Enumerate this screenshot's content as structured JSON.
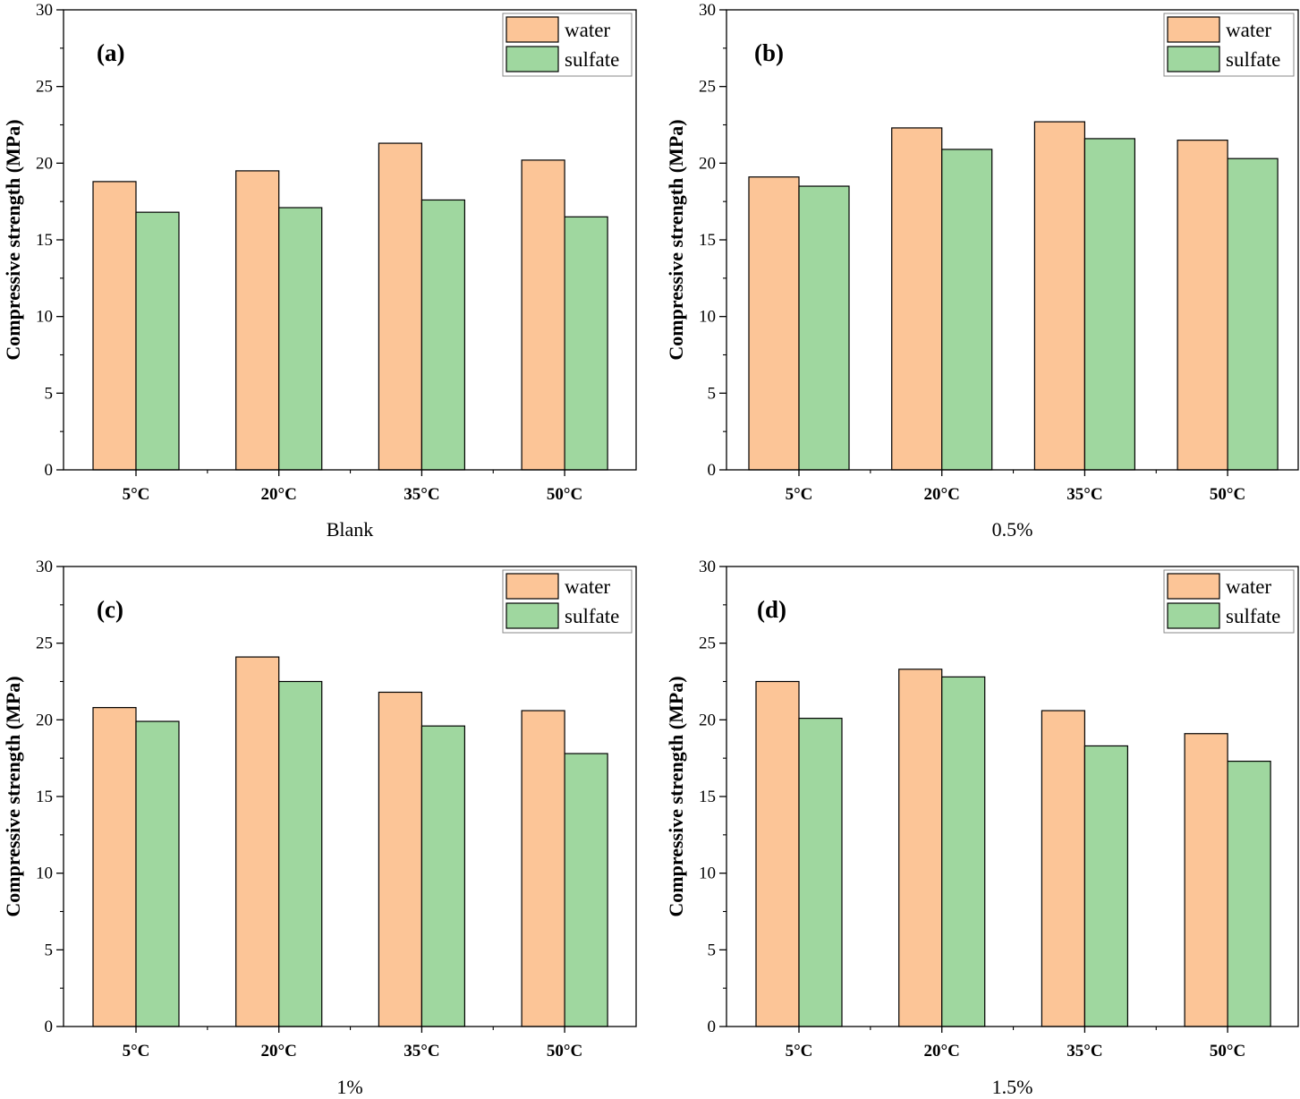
{
  "colors": {
    "water": "#fcc597",
    "sulfate": "#9fd79f",
    "axis": "#000000"
  },
  "chart_data": [
    {
      "type": "bar",
      "panel_tag": "(a)",
      "xlabel": "Blank",
      "ylabel": "Compressive strength (MPa)",
      "categories": [
        "5°C",
        "20°C",
        "35°C",
        "50°C"
      ],
      "ylim": [
        0,
        30
      ],
      "yticks": [
        "0",
        "5",
        "10",
        "15",
        "20",
        "25",
        "30"
      ],
      "legend_position": "top-right",
      "series": [
        {
          "name": "water",
          "values": [
            18.8,
            19.5,
            21.3,
            20.2
          ]
        },
        {
          "name": "sulfate",
          "values": [
            16.8,
            17.1,
            17.6,
            16.5
          ]
        }
      ]
    },
    {
      "type": "bar",
      "panel_tag": "(b)",
      "xlabel": "0.5%",
      "ylabel": "Compressive strength (MPa)",
      "categories": [
        "5°C",
        "20°C",
        "35°C",
        "50°C"
      ],
      "ylim": [
        0,
        30
      ],
      "yticks": [
        "0",
        "5",
        "10",
        "15",
        "20",
        "25",
        "30"
      ],
      "legend_position": "top-right",
      "series": [
        {
          "name": "water",
          "values": [
            19.1,
            22.3,
            22.7,
            21.5
          ]
        },
        {
          "name": "sulfate",
          "values": [
            18.5,
            20.9,
            21.6,
            20.3
          ]
        }
      ]
    },
    {
      "type": "bar",
      "panel_tag": "(c)",
      "xlabel": "1%",
      "ylabel": "Compressive strength (MPa)",
      "categories": [
        "5°C",
        "20°C",
        "35°C",
        "50°C"
      ],
      "ylim": [
        0,
        30
      ],
      "yticks": [
        "0",
        "5",
        "10",
        "15",
        "20",
        "25",
        "30"
      ],
      "legend_position": "top-right",
      "series": [
        {
          "name": "water",
          "values": [
            20.8,
            24.1,
            21.8,
            20.6
          ]
        },
        {
          "name": "sulfate",
          "values": [
            19.9,
            22.5,
            19.6,
            17.8
          ]
        }
      ]
    },
    {
      "type": "bar",
      "panel_tag": "(d)",
      "xlabel": "1.5%",
      "ylabel": "Compressive strength (MPa)",
      "categories": [
        "5°C",
        "20°C",
        "35°C",
        "50°C"
      ],
      "ylim": [
        0,
        30
      ],
      "yticks": [
        "0",
        "5",
        "10",
        "15",
        "20",
        "25",
        "30"
      ],
      "legend_position": "top-right",
      "series": [
        {
          "name": "water",
          "values": [
            22.5,
            23.3,
            20.6,
            19.1
          ]
        },
        {
          "name": "sulfate",
          "values": [
            20.1,
            22.8,
            18.3,
            17.3
          ]
        }
      ]
    }
  ]
}
